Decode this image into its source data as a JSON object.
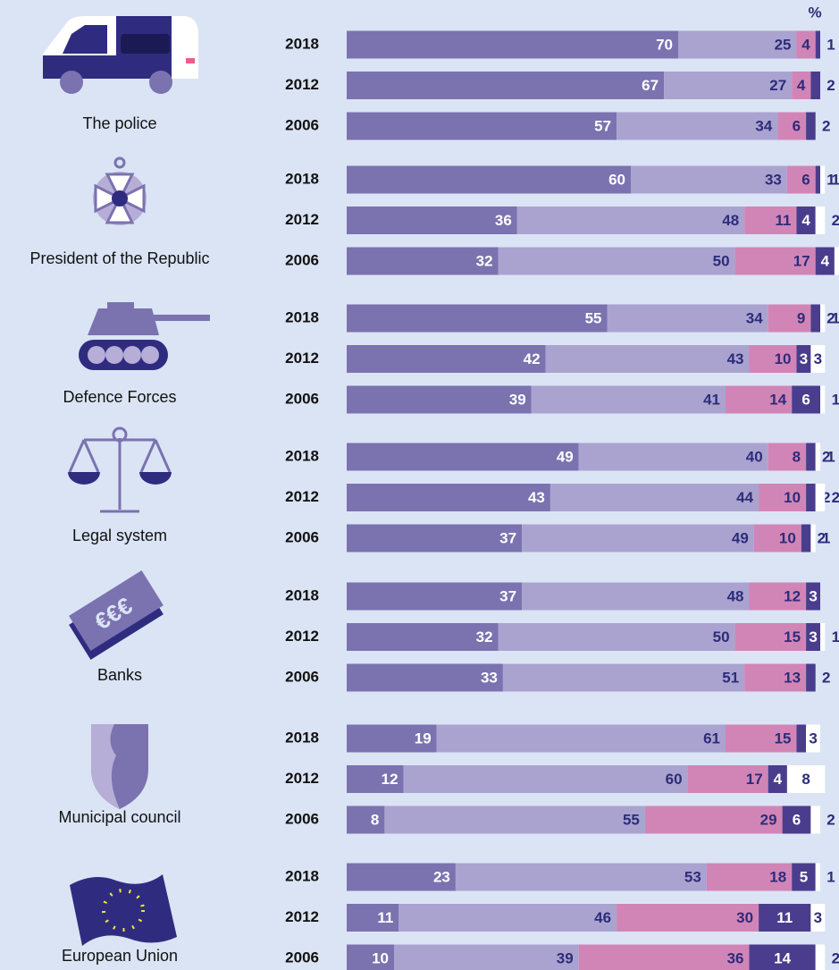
{
  "chart_data": {
    "type": "bar",
    "orientation": "horizontal",
    "stacked": true,
    "unit_label": "%",
    "colors": [
      "#7b72b0",
      "#aaa3d0",
      "#d185b7",
      "#4a3d8e",
      "#ffffff"
    ],
    "xlim": [
      0,
      100
    ],
    "groups": [
      {
        "label": "The police",
        "categories": [
          "2018",
          "2012",
          "2006"
        ],
        "values": [
          [
            70,
            25,
            4,
            1,
            null
          ],
          [
            67,
            27,
            4,
            2,
            null
          ],
          [
            57,
            34,
            6,
            2,
            null
          ]
        ]
      },
      {
        "label": "President of the Republic",
        "categories": [
          "2018",
          "2012",
          "2006"
        ],
        "values": [
          [
            60,
            33,
            6,
            1,
            1
          ],
          [
            36,
            48,
            11,
            4,
            2
          ],
          [
            32,
            50,
            17,
            4,
            1
          ]
        ]
      },
      {
        "label": "Defence Forces",
        "categories": [
          "2018",
          "2012",
          "2006"
        ],
        "values": [
          [
            55,
            34,
            9,
            2,
            1
          ],
          [
            42,
            43,
            10,
            3,
            3
          ],
          [
            39,
            41,
            14,
            6,
            1
          ]
        ]
      },
      {
        "label": "Legal system",
        "categories": [
          "2018",
          "2012",
          "2006"
        ],
        "values": [
          [
            49,
            40,
            8,
            2,
            1
          ],
          [
            43,
            44,
            10,
            2,
            2
          ],
          [
            37,
            49,
            10,
            2,
            1
          ]
        ]
      },
      {
        "label": "Banks",
        "categories": [
          "2018",
          "2012",
          "2006"
        ],
        "values": [
          [
            37,
            48,
            12,
            3,
            null
          ],
          [
            32,
            50,
            15,
            3,
            1
          ],
          [
            33,
            51,
            13,
            2,
            null
          ]
        ]
      },
      {
        "label": "Municipal council",
        "categories": [
          "2018",
          "2012",
          "2006"
        ],
        "values": [
          [
            19,
            61,
            15,
            2,
            3
          ],
          [
            12,
            60,
            17,
            4,
            8
          ],
          [
            8,
            55,
            29,
            6,
            2
          ]
        ]
      },
      {
        "label": "European Union",
        "categories": [
          "2018",
          "2012",
          "2006"
        ],
        "values": [
          [
            23,
            53,
            18,
            5,
            1
          ],
          [
            11,
            46,
            30,
            11,
            3
          ],
          [
            10,
            39,
            36,
            14,
            2
          ]
        ]
      }
    ]
  }
}
